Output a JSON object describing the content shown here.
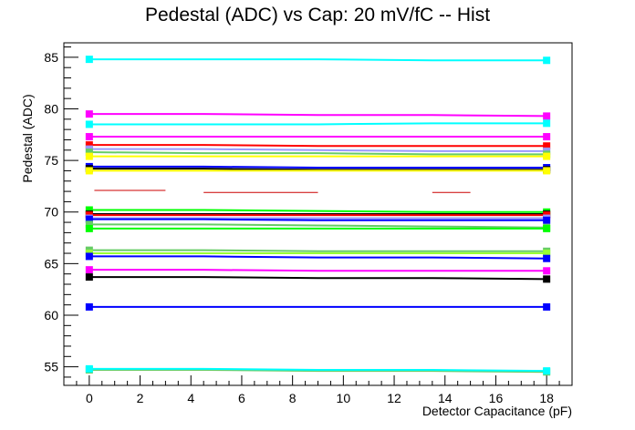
{
  "chart_data": {
    "type": "line",
    "title": "Pedestal (ADC) vs Cap: 20 mV/fC -- Hist",
    "xlabel": "Detector Capacitance (pF)",
    "ylabel": "Pedestal (ADC)",
    "xlim": [
      -1,
      19
    ],
    "ylim": [
      53.2,
      86.4
    ],
    "x_ticks": [
      "0",
      "2",
      "4",
      "6",
      "8",
      "10",
      "12",
      "14",
      "16",
      "18"
    ],
    "y_ticks": [
      "55",
      "60",
      "65",
      "70",
      "75",
      "80",
      "85"
    ],
    "grid": false,
    "legend": "none",
    "x": [
      0,
      4.5,
      9,
      13.5,
      18
    ],
    "series": [
      {
        "color": "#00ffff",
        "values": [
          84.8,
          84.8,
          84.8,
          84.7,
          84.7
        ]
      },
      {
        "color": "#ff00ff",
        "values": [
          79.5,
          79.5,
          79.4,
          79.4,
          79.3
        ]
      },
      {
        "color": "#00ffff",
        "values": [
          78.5,
          78.5,
          78.5,
          78.6,
          78.6
        ]
      },
      {
        "color": "#ff00ff",
        "values": [
          77.3,
          77.3,
          77.3,
          77.3,
          77.3
        ]
      },
      {
        "color": "#ff0000",
        "values": [
          76.5,
          76.5,
          76.4,
          76.4,
          76.4
        ]
      },
      {
        "color": "#9999ff",
        "values": [
          76.1,
          76.1,
          76.0,
          75.9,
          75.9
        ]
      },
      {
        "color": "#66cc66",
        "values": [
          75.8,
          75.7,
          75.7,
          75.6,
          75.6
        ]
      },
      {
        "color": "#ffff00",
        "values": [
          75.4,
          75.4,
          75.4,
          75.4,
          75.4
        ]
      },
      {
        "color": "#0000ff",
        "values": [
          74.4,
          74.4,
          74.3,
          74.3,
          74.3
        ]
      },
      {
        "color": "#000000",
        "values": [
          74.2,
          74.2,
          74.1,
          74.1,
          74.1
        ]
      },
      {
        "color": "#ffff00",
        "values": [
          74.0,
          74.0,
          74.0,
          74.0,
          74.0
        ]
      },
      {
        "color": "#00ff00",
        "values": [
          70.2,
          70.2,
          70.1,
          70.0,
          70.0
        ]
      },
      {
        "color": "#000000",
        "values": [
          69.8,
          69.8,
          69.8,
          69.8,
          69.8
        ]
      },
      {
        "color": "#ff0000",
        "values": [
          69.7,
          69.7,
          69.7,
          69.7,
          69.7
        ]
      },
      {
        "color": "#9999ff",
        "values": [
          69.4,
          69.4,
          69.4,
          69.4,
          69.4
        ]
      },
      {
        "color": "#0000ff",
        "values": [
          69.3,
          69.3,
          69.2,
          69.2,
          69.2
        ]
      },
      {
        "color": "#66cc66",
        "values": [
          68.8,
          68.8,
          68.7,
          68.6,
          68.5
        ]
      },
      {
        "color": "#00ff00",
        "values": [
          68.4,
          68.4,
          68.4,
          68.4,
          68.4
        ]
      },
      {
        "color": "#66cc66",
        "values": [
          66.3,
          66.3,
          66.2,
          66.2,
          66.2
        ]
      },
      {
        "color": "#99ff33",
        "values": [
          66.0,
          66.0,
          66.0,
          66.0,
          66.0
        ]
      },
      {
        "color": "#0000ff",
        "values": [
          65.7,
          65.7,
          65.6,
          65.6,
          65.5
        ]
      },
      {
        "color": "#ff00ff",
        "values": [
          64.4,
          64.4,
          64.3,
          64.3,
          64.3
        ]
      },
      {
        "color": "#000000",
        "values": [
          63.7,
          63.7,
          63.6,
          63.6,
          63.5
        ]
      },
      {
        "color": "#0000ff",
        "values": [
          60.8,
          60.8,
          60.8,
          60.8,
          60.8
        ]
      },
      {
        "color": "#66cc66",
        "values": [
          54.7,
          54.7,
          54.6,
          54.6,
          54.5
        ]
      },
      {
        "color": "#00ffff",
        "values": [
          54.8,
          54.8,
          54.7,
          54.7,
          54.6
        ]
      }
    ],
    "fragments": [
      {
        "color": "#cc0000",
        "x": [
          0.2,
          3.0
        ],
        "y": 72.1
      },
      {
        "color": "#cc0000",
        "x": [
          4.5,
          9.0
        ],
        "y": 71.9
      },
      {
        "color": "#cc0000",
        "x": [
          13.5,
          15.0
        ],
        "y": 71.9
      }
    ]
  }
}
